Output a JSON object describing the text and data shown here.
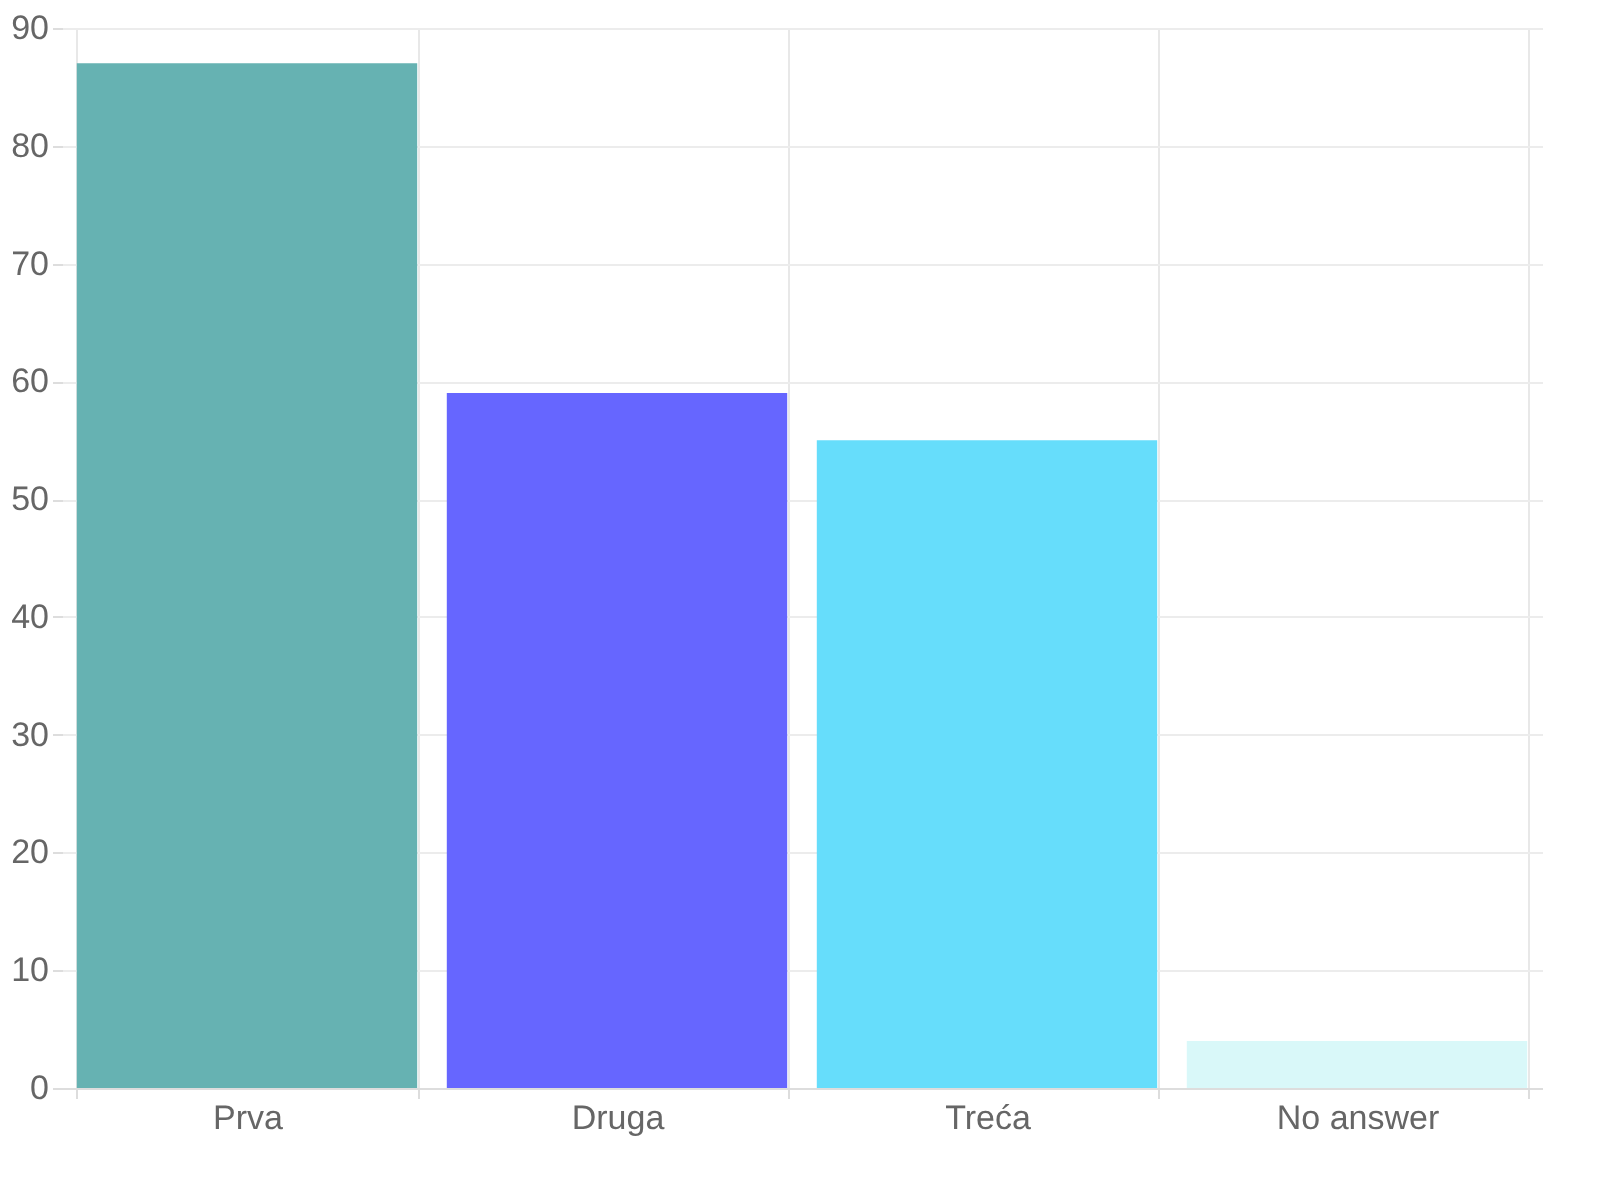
{
  "chart_data": {
    "type": "bar",
    "categories": [
      "Prva",
      "Druga",
      "Treća",
      "No answer"
    ],
    "values": [
      87,
      59,
      55,
      4
    ],
    "colors": [
      "#66b2b2",
      "#6666ff",
      "#66ddfb",
      "#d9f8f9"
    ],
    "ylim": [
      0,
      90
    ],
    "yticks": [
      0,
      10,
      20,
      30,
      40,
      50,
      60,
      70,
      80,
      90
    ],
    "grid": true
  }
}
